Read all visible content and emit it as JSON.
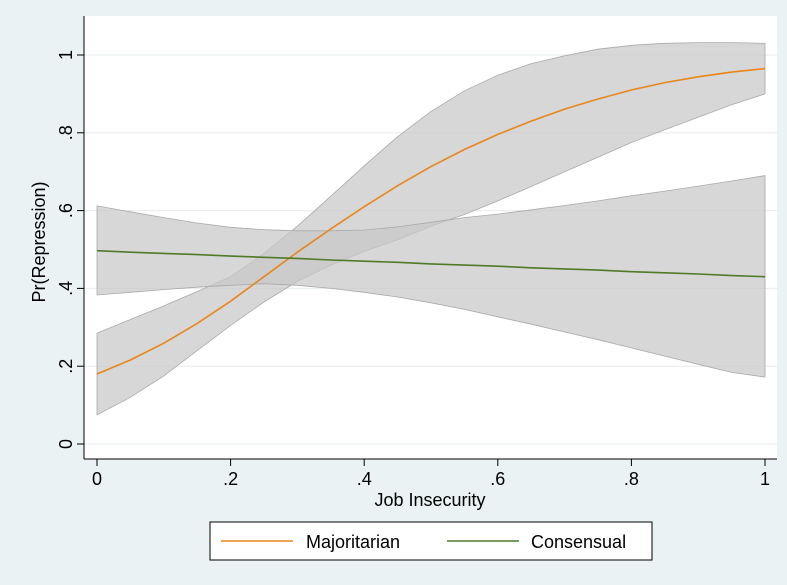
{
  "chart_data": {
    "type": "line",
    "xlabel": "Job Insecurity",
    "ylabel": "Pr(Repression)",
    "xlim": [
      0,
      1
    ],
    "ylim": [
      0,
      1
    ],
    "x_ticks": [
      {
        "value": 0,
        "label": "0"
      },
      {
        "value": 0.2,
        "label": ".2"
      },
      {
        "value": 0.4,
        "label": ".4"
      },
      {
        "value": 0.6,
        "label": ".6"
      },
      {
        "value": 0.8,
        "label": ".8"
      },
      {
        "value": 1,
        "label": "1"
      }
    ],
    "y_ticks": [
      {
        "value": 0,
        "label": "0"
      },
      {
        "value": 0.2,
        "label": ".2"
      },
      {
        "value": 0.4,
        "label": ".4"
      },
      {
        "value": 0.6,
        "label": ".6"
      },
      {
        "value": 0.8,
        "label": ".8"
      },
      {
        "value": 1,
        "label": "1"
      }
    ],
    "grid": true,
    "legend_position": "bottom",
    "series": [
      {
        "name": "Majoritarian",
        "color": "#e8861a",
        "x": [
          0,
          0.05,
          0.1,
          0.15,
          0.2,
          0.25,
          0.3,
          0.35,
          0.4,
          0.45,
          0.5,
          0.55,
          0.6,
          0.65,
          0.7,
          0.75,
          0.8,
          0.85,
          0.9,
          0.95,
          1
        ],
        "y": [
          0.18,
          0.216,
          0.259,
          0.31,
          0.367,
          0.43,
          0.493,
          0.553,
          0.61,
          0.664,
          0.713,
          0.757,
          0.796,
          0.83,
          0.861,
          0.887,
          0.91,
          0.929,
          0.944,
          0.956,
          0.965
        ],
        "ci_lower": [
          0.075,
          0.12,
          0.175,
          0.24,
          0.305,
          0.365,
          0.418,
          0.46,
          0.495,
          0.525,
          0.56,
          0.59,
          0.625,
          0.662,
          0.7,
          0.737,
          0.775,
          0.808,
          0.84,
          0.872,
          0.9
        ],
        "ci_upper": [
          0.285,
          0.32,
          0.355,
          0.392,
          0.43,
          0.49,
          0.56,
          0.637,
          0.715,
          0.79,
          0.855,
          0.908,
          0.948,
          0.978,
          0.998,
          1.015,
          1.025,
          1.03,
          1.032,
          1.032,
          1.03
        ]
      },
      {
        "name": "Consensual",
        "color": "#4f7a28",
        "x": [
          0,
          0.05,
          0.1,
          0.15,
          0.2,
          0.25,
          0.3,
          0.35,
          0.4,
          0.45,
          0.5,
          0.55,
          0.6,
          0.65,
          0.7,
          0.75,
          0.8,
          0.85,
          0.9,
          0.95,
          1
        ],
        "y": [
          0.497,
          0.493,
          0.49,
          0.487,
          0.483,
          0.48,
          0.477,
          0.473,
          0.47,
          0.467,
          0.463,
          0.46,
          0.457,
          0.453,
          0.45,
          0.447,
          0.443,
          0.44,
          0.437,
          0.433,
          0.43
        ],
        "ci_lower": [
          0.383,
          0.39,
          0.397,
          0.403,
          0.408,
          0.412,
          0.408,
          0.4,
          0.39,
          0.378,
          0.363,
          0.346,
          0.327,
          0.308,
          0.288,
          0.268,
          0.247,
          0.226,
          0.205,
          0.184,
          0.172
        ],
        "ci_upper": [
          0.612,
          0.597,
          0.582,
          0.568,
          0.557,
          0.551,
          0.548,
          0.548,
          0.55,
          0.558,
          0.57,
          0.582,
          0.591,
          0.602,
          0.613,
          0.625,
          0.638,
          0.65,
          0.663,
          0.676,
          0.69
        ]
      }
    ],
    "ci_fill_color": "#c7c7c7"
  }
}
